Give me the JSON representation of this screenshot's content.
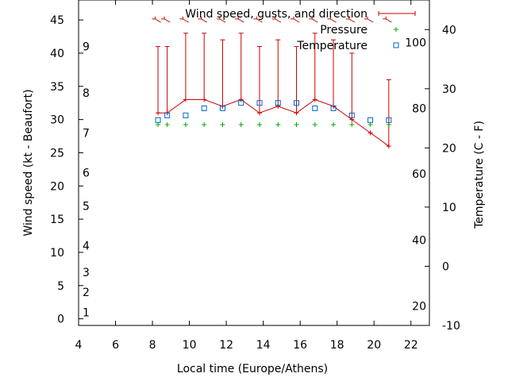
{
  "chart_data": {
    "type": "line",
    "xlabel": "Local time (Europe/Athens)",
    "ylabel_left": "Wind speed (kt - Beaufort)",
    "ylabel_right": "Temperature (C - F)",
    "xlim": [
      4,
      23
    ],
    "ylim_left": [
      -1,
      48
    ],
    "ylim_right": [
      -10,
      45
    ],
    "x_ticks": [
      4,
      6,
      8,
      10,
      12,
      14,
      16,
      18,
      20,
      22
    ],
    "y_ticks_left": [
      0,
      5,
      10,
      15,
      20,
      25,
      30,
      35,
      40,
      45
    ],
    "y_ticks_right": [
      -10,
      0,
      10,
      20,
      30,
      40
    ],
    "beaufort_labels": [
      {
        "text": "1",
        "kt": 1
      },
      {
        "text": "2",
        "kt": 4
      },
      {
        "text": "3",
        "kt": 7
      },
      {
        "text": "4",
        "kt": 11
      },
      {
        "text": "5",
        "kt": 17
      },
      {
        "text": "6",
        "kt": 22
      },
      {
        "text": "7",
        "kt": 28
      },
      {
        "text": "8",
        "kt": 34
      },
      {
        "text": "9",
        "kt": 41
      }
    ],
    "fahrenheit_labels": [
      {
        "text": "20",
        "c": -6.7
      },
      {
        "text": "40",
        "c": 4.4
      },
      {
        "text": "60",
        "c": 15.6
      },
      {
        "text": "80",
        "c": 26.7
      },
      {
        "text": "100",
        "c": 37.8
      }
    ],
    "legend": [
      "Wind speed, gusts, and direction",
      "Pressure",
      "Temperature"
    ],
    "colors": {
      "wind": "#cc0000",
      "pressure": "#00aa00",
      "temperature": "#0066cc"
    },
    "series": [
      {
        "name": "Wind speed, gusts, and direction",
        "x": [
          8.3,
          8.8,
          9.8,
          10.8,
          11.8,
          12.8,
          13.8,
          14.8,
          15.8,
          16.8,
          17.8,
          18.8,
          19.8,
          20.8
        ],
        "speed": [
          31,
          31,
          33,
          33,
          32,
          33,
          31,
          32,
          31,
          33,
          32,
          30,
          28,
          26
        ],
        "gust": [
          41,
          41,
          43,
          43,
          42,
          43,
          41,
          42,
          41,
          43,
          42,
          40,
          null,
          36
        ],
        "direction_deg": [
          135,
          135,
          135,
          135,
          135,
          135,
          135,
          135,
          135,
          135,
          135,
          135,
          135,
          135
        ]
      },
      {
        "name": "Pressure",
        "x": [
          8.3,
          8.8,
          9.8,
          10.8,
          11.8,
          12.8,
          13.8,
          14.8,
          15.8,
          16.8,
          17.8,
          18.8,
          19.8,
          20.8
        ],
        "values": [
          29,
          29,
          29,
          29,
          29,
          29,
          29,
          29,
          29,
          29,
          29,
          29,
          29,
          29
        ]
      },
      {
        "name": "Temperature",
        "x": [
          8.3,
          8.8,
          9.8,
          10.8,
          11.8,
          12.8,
          13.8,
          14.8,
          15.8,
          16.8,
          17.8,
          18.8,
          19.8,
          20.8
        ],
        "values": [
          24.7,
          25.5,
          25.5,
          26.7,
          26.7,
          27.6,
          27.6,
          27.6,
          27.6,
          26.7,
          26.7,
          25.5,
          24.7,
          24.7
        ]
      }
    ]
  }
}
